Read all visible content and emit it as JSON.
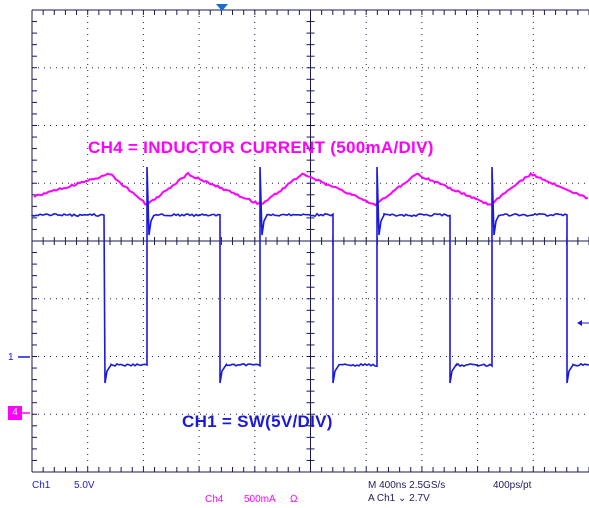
{
  "annotations": {
    "ch4": "CH4 = INDUCTOR CURRENT (500mA/DIV)",
    "ch1": "CH1 = SW(5V/DIV)"
  },
  "markers": {
    "ch1": "1",
    "ch4": "4"
  },
  "status": {
    "ch1_name": "Ch1",
    "ch1_scale": "5.0V",
    "ch4_name": "Ch4",
    "ch4_scale": "500mA",
    "ch4_impedance": "Ω",
    "timebase": "M 400ns 2.5GS/s",
    "record": "400ps/pt",
    "trigger": "A  Ch1  ⌄  2.7V"
  },
  "colors": {
    "ch1": "#1a1ad8",
    "ch4": "#ff00ff",
    "grid": "#1a1a50",
    "background": "#ffffff"
  },
  "chart_data": {
    "type": "line",
    "title": "",
    "grid": true,
    "divisions": {
      "horizontal": 10,
      "vertical": 8
    },
    "series": [
      {
        "name": "CH4",
        "description_units": "500mA/DIV",
        "waveform": "triangle",
        "period_divisions": 2.05,
        "low_level_div": 3.35,
        "high_level_div": 2.6
      },
      {
        "name": "CH1",
        "description_units": "5V/DIV",
        "waveform": "square",
        "period_divisions": 2.05,
        "high_level_div": 1.95,
        "low_level_div": -1.35,
        "duty": 0.38
      }
    ]
  }
}
